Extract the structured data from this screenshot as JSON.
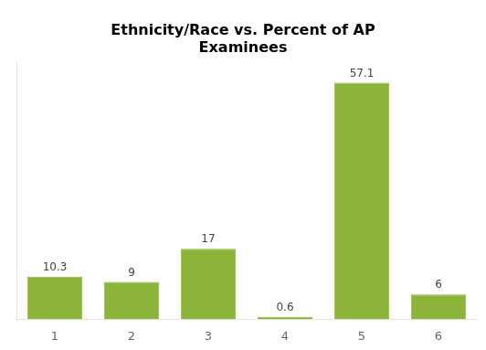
{
  "chart_data": {
    "type": "bar",
    "title": "Ethnicity/Race vs. Percent of AP\nExaminees",
    "categories": [
      "1",
      "2",
      "3",
      "4",
      "5",
      "6"
    ],
    "values": [
      10.3,
      9,
      17,
      0.6,
      57.1,
      6
    ],
    "color": "#8DB43A",
    "ylim": [
      0,
      62
    ],
    "data_labels": true,
    "tick_labels": "x",
    "grid": false
  }
}
